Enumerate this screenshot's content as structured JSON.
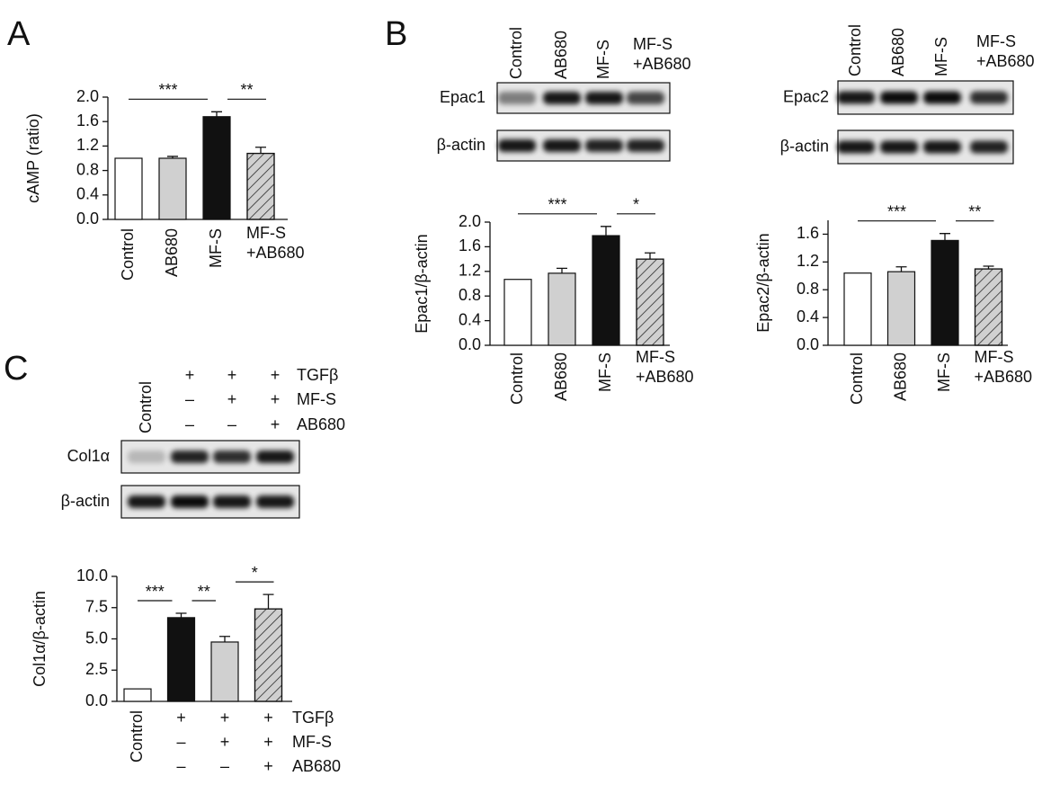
{
  "panels": [
    "A",
    "B",
    "C"
  ],
  "blots": [
    {
      "lanes": [
        "Control",
        "AB680",
        "MF-S",
        "MF-S +AB680"
      ],
      "rows": [
        "Epac1",
        "β-actin"
      ]
    },
    {
      "lanes": [
        "Control",
        "AB680",
        "MF-S",
        "MF-S +AB680"
      ],
      "rows": [
        "Epac2",
        "β-actin"
      ]
    },
    {
      "lanes": [
        "Control"
      ],
      "rows": [
        "Col1α",
        "β-actin"
      ],
      "conditions": [
        {
          "label": "TGFβ",
          "signs": [
            "+",
            "+",
            "+"
          ]
        },
        {
          "label": "MF-S",
          "signs": [
            "–",
            "+",
            "+"
          ]
        },
        {
          "label": "AB680",
          "signs": [
            "–",
            "–",
            "+"
          ]
        }
      ]
    }
  ],
  "chart_data": [
    {
      "type": "bar",
      "ylabel": "cAMP (ratio)",
      "categories": [
        "Control",
        "AB680",
        "MF-S",
        "MF-S +AB680"
      ],
      "values": [
        1.0,
        1.0,
        1.68,
        1.08
      ],
      "errors": [
        null,
        0.03,
        0.08,
        0.1
      ],
      "colors": [
        "#ffffff",
        "#d0d0d0",
        "#111111",
        "#d0d0d0"
      ],
      "hatched": [
        false,
        false,
        false,
        true
      ],
      "ylim": [
        0,
        2.0
      ],
      "yticks": [
        {
          "value": 0,
          "label": "0.0"
        },
        {
          "value": 0.4,
          "label": "0.4"
        },
        {
          "value": 0.8,
          "label": "0.8"
        },
        {
          "value": 1.2,
          "label": "1.2"
        },
        {
          "value": 1.6,
          "label": "1.6"
        },
        {
          "value": 2.0,
          "label": "2.0"
        }
      ],
      "significance": [
        {
          "label": "***",
          "between": [
            0,
            2
          ]
        },
        {
          "label": "**",
          "between": [
            2,
            3
          ]
        }
      ]
    },
    {
      "type": "bar",
      "ylabel": "Epac1/β-actin",
      "categories": [
        "Control",
        "AB680",
        "MF-S",
        "MF-S +AB680"
      ],
      "values": [
        1.07,
        1.17,
        1.78,
        1.4
      ],
      "errors": [
        null,
        0.08,
        0.15,
        0.1
      ],
      "colors": [
        "#ffffff",
        "#d0d0d0",
        "#111111",
        "#d0d0d0"
      ],
      "hatched": [
        false,
        false,
        false,
        true
      ],
      "ylim": [
        0,
        2.0
      ],
      "yticks": [
        {
          "value": 0,
          "label": "0.0"
        },
        {
          "value": 0.4,
          "label": "0.4"
        },
        {
          "value": 0.8,
          "label": "0.8"
        },
        {
          "value": 1.2,
          "label": "1.2"
        },
        {
          "value": 1.6,
          "label": "1.6"
        },
        {
          "value": 2.0,
          "label": "2.0"
        }
      ],
      "significance": [
        {
          "label": "***",
          "between": [
            0,
            2
          ]
        },
        {
          "label": "*",
          "between": [
            2,
            3
          ]
        }
      ]
    },
    {
      "type": "bar",
      "ylabel": "Epac2/β-actin",
      "categories": [
        "Control",
        "AB680",
        "MF-S",
        "MF-S +AB680"
      ],
      "values": [
        1.04,
        1.06,
        1.51,
        1.1
      ],
      "errors": [
        null,
        0.07,
        0.1,
        0.04
      ],
      "colors": [
        "#ffffff",
        "#d0d0d0",
        "#111111",
        "#d0d0d0"
      ],
      "hatched": [
        false,
        false,
        false,
        true
      ],
      "ylim": [
        0,
        1.8
      ],
      "yticks": [
        {
          "value": 0,
          "label": "0.0"
        },
        {
          "value": 0.4,
          "label": "0.4"
        },
        {
          "value": 0.8,
          "label": "0.8"
        },
        {
          "value": 1.2,
          "label": "1.2"
        },
        {
          "value": 1.6,
          "label": "1.6"
        }
      ],
      "significance": [
        {
          "label": "***",
          "between": [
            0,
            2
          ]
        },
        {
          "label": "**",
          "between": [
            2,
            3
          ]
        }
      ]
    },
    {
      "type": "bar",
      "ylabel": "Col1α/β-actin",
      "categories": [
        "Control",
        null,
        null,
        null
      ],
      "values": [
        1.0,
        6.7,
        4.75,
        7.4
      ],
      "errors": [
        null,
        0.35,
        0.45,
        1.15
      ],
      "colors": [
        "#ffffff",
        "#111111",
        "#d0d0d0",
        "#d0d0d0"
      ],
      "hatched": [
        false,
        false,
        false,
        true
      ],
      "ylim": [
        0,
        10
      ],
      "yticks": [
        {
          "value": 0,
          "label": "0.0"
        },
        {
          "value": 2.5,
          "label": "2.5"
        },
        {
          "value": 5,
          "label": "5.0"
        },
        {
          "value": 7.5,
          "label": "7.5"
        },
        {
          "value": 10,
          "label": "10.0"
        }
      ],
      "significance": [
        {
          "label": "***",
          "between": [
            0,
            1
          ]
        },
        {
          "label": "**",
          "between": [
            1,
            2
          ]
        },
        {
          "label": "*",
          "between": [
            2,
            3
          ]
        }
      ],
      "conditions": [
        {
          "label": "TGFβ",
          "signs": [
            "+",
            "+",
            "+"
          ]
        },
        {
          "label": "MF-S",
          "signs": [
            "–",
            "+",
            "+"
          ]
        },
        {
          "label": "AB680",
          "signs": [
            "–",
            "–",
            "+"
          ]
        }
      ]
    }
  ]
}
